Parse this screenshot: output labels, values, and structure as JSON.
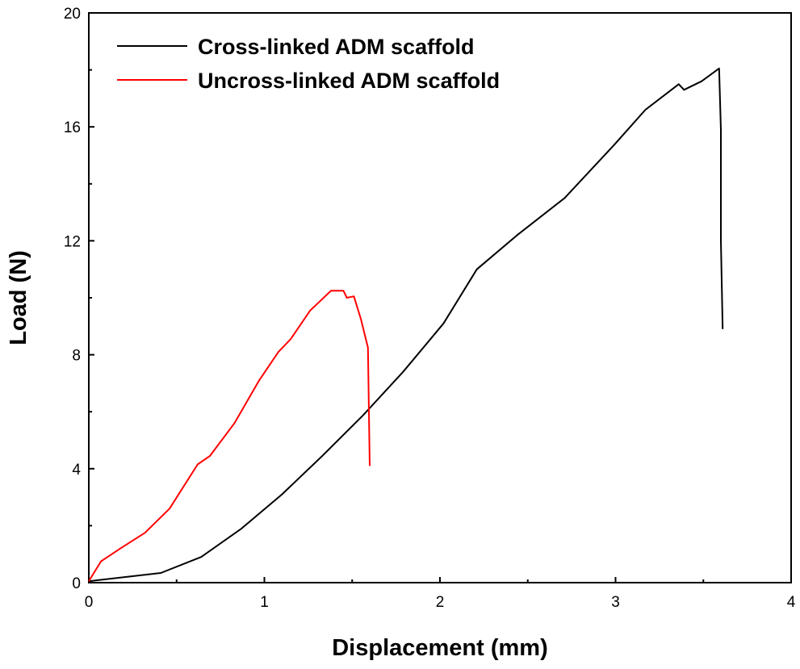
{
  "chart_data": {
    "type": "line",
    "title": "",
    "xlabel": "Displacement (mm)",
    "ylabel": "Load (N)",
    "xlim": [
      0,
      4
    ],
    "ylim": [
      0,
      20
    ],
    "xticks": [
      "0",
      "1",
      "2",
      "3",
      "4"
    ],
    "yticks": [
      "0",
      "4",
      "8",
      "12",
      "16",
      "20"
    ],
    "grid": false,
    "legend_position": "top-left",
    "series": [
      {
        "name": "Cross-linked ADM scaffold",
        "color": "#000000",
        "x": [
          0,
          0.41,
          0.64,
          0.87,
          1.1,
          1.33,
          1.56,
          1.79,
          2.02,
          2.21,
          2.44,
          2.71,
          2.99,
          3.17,
          3.36,
          3.39,
          3.49,
          3.59,
          3.6,
          3.6,
          3.61
        ],
        "y": [
          0.05,
          0.34,
          0.9,
          1.9,
          3.1,
          4.45,
          5.86,
          7.4,
          9.1,
          11.0,
          12.2,
          13.5,
          15.35,
          16.6,
          17.5,
          17.3,
          17.6,
          18.05,
          15.9,
          12.0,
          8.9
        ]
      },
      {
        "name": "Uncross-linked ADM scaffold",
        "color": "#ff0000",
        "x": [
          0,
          0.07,
          0.18,
          0.32,
          0.46,
          0.62,
          0.69,
          0.83,
          0.97,
          1.08,
          1.15,
          1.26,
          1.38,
          1.45,
          1.47,
          1.51,
          1.55,
          1.59,
          1.6
        ],
        "y": [
          0.05,
          0.75,
          1.2,
          1.75,
          2.6,
          4.15,
          4.45,
          5.6,
          7.1,
          8.1,
          8.55,
          9.55,
          10.25,
          10.25,
          10.0,
          10.05,
          9.25,
          8.25,
          4.1
        ]
      }
    ]
  }
}
